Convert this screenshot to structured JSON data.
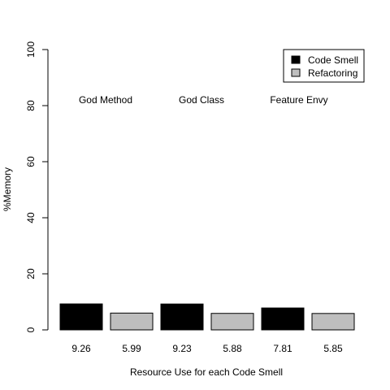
{
  "chart_data": {
    "type": "bar",
    "xlabel": "Resource Use for each Code Smell",
    "ylabel": "%Memory",
    "ylim": [
      0,
      100
    ],
    "yticks": [
      0,
      20,
      40,
      60,
      80,
      100
    ],
    "grid": false,
    "legend_position": "top-right",
    "groups": [
      {
        "label": "God Method",
        "values": [
          9.26,
          5.99
        ]
      },
      {
        "label": "God Class",
        "values": [
          9.23,
          5.88
        ]
      },
      {
        "label": "Feature Envy",
        "values": [
          7.81,
          5.85
        ]
      }
    ],
    "series": [
      {
        "name": "Code Smell",
        "color": "#000000"
      },
      {
        "name": "Refactoring",
        "color": "#bebebe"
      }
    ],
    "value_labels": [
      "9.26",
      "5.99",
      "9.23",
      "5.88",
      "7.81",
      "5.85"
    ]
  }
}
